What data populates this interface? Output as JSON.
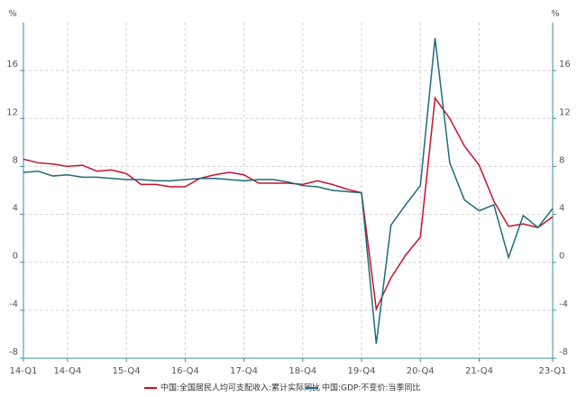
{
  "chart_data": {
    "type": "line",
    "y_label": "%",
    "y2_label": "%",
    "categories": [
      "14-Q1",
      null,
      null,
      "14-Q4",
      null,
      null,
      null,
      "15-Q4",
      null,
      null,
      null,
      "16-Q4",
      null,
      null,
      null,
      "17-Q4",
      null,
      null,
      null,
      "18-Q4",
      null,
      null,
      null,
      "19-Q4",
      null,
      null,
      null,
      "20-Q4",
      null,
      null,
      null,
      "21-Q4",
      null,
      null,
      null,
      null,
      "23-Q1"
    ],
    "series": [
      {
        "name": "中国:全国居民人均可支配收入:累计实际同比",
        "color": "#c8102e",
        "values": [
          8.6,
          8.3,
          8.2,
          8.0,
          8.1,
          7.6,
          7.7,
          7.4,
          6.5,
          6.5,
          6.3,
          6.3,
          7.0,
          7.3,
          7.5,
          7.3,
          6.6,
          6.6,
          6.6,
          6.5,
          6.8,
          6.5,
          6.1,
          5.8,
          -3.9,
          -1.3,
          0.6,
          2.1,
          13.7,
          12.0,
          9.7,
          8.1,
          5.1,
          3.0,
          3.2,
          2.9,
          3.8
        ]
      },
      {
        "name": "中国:GDP:不变价:当季同比",
        "color": "#1f6b7a",
        "axis": "y2",
        "values": [
          7.5,
          7.6,
          7.2,
          7.3,
          7.1,
          7.1,
          7.0,
          6.9,
          6.9,
          6.8,
          6.8,
          6.9,
          7.0,
          7.0,
          6.9,
          6.8,
          6.9,
          6.9,
          6.7,
          6.4,
          6.3,
          6.0,
          5.9,
          5.8,
          -6.8,
          3.1,
          4.8,
          6.4,
          18.7,
          8.3,
          5.2,
          4.3,
          4.8,
          0.4,
          3.9,
          2.9,
          4.5
        ]
      }
    ],
    "ylim": [
      -8,
      20
    ],
    "yticks": [
      -8,
      -4,
      0,
      4,
      8,
      12,
      16
    ],
    "y2lim": [
      -8,
      20
    ],
    "y2ticks": [
      -8,
      -4,
      0,
      4,
      8,
      12,
      16
    ],
    "grid": true
  }
}
